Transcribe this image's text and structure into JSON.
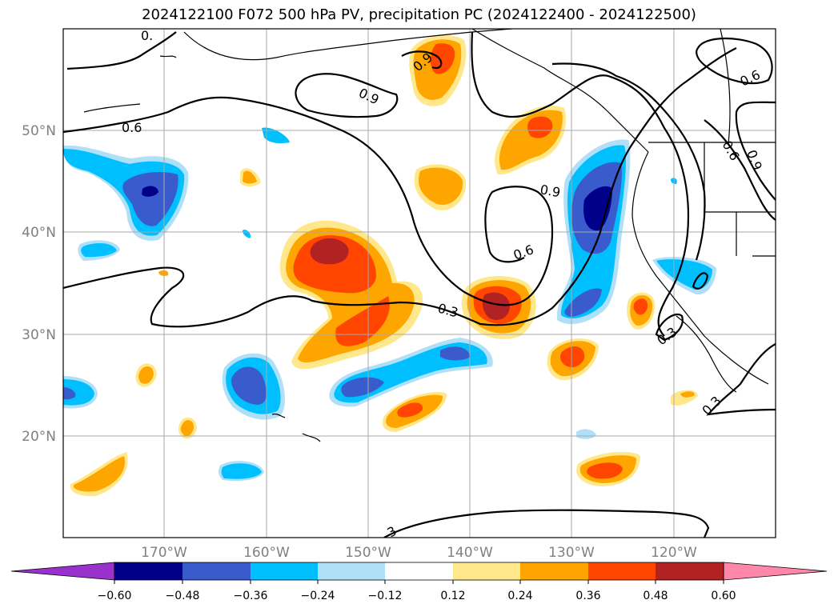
{
  "title": "2024122100 F072 500 hPa PV, precipitation PC (2024122400 - 2024122500)",
  "map": {
    "projection": "PlateCarree",
    "lon_range": [
      -180,
      -110
    ],
    "lat_range": [
      10,
      60
    ],
    "grid": true,
    "lat_ticks": [
      "20°N",
      "30°N",
      "40°N",
      "50°N"
    ],
    "lon_ticks": [
      "170°W",
      "160°W",
      "150°W",
      "140°W",
      "130°W",
      "120°W"
    ]
  },
  "pv_contours": {
    "color": "#000000",
    "levels": [
      0.3,
      0.6,
      0.9
    ],
    "labels": [
      "0.",
      "0.6",
      "0.9",
      "0.9",
      "0.9",
      "0.6",
      "0.6",
      "0.9",
      "0.6",
      "0.3",
      "0.3",
      "0.3",
      "3"
    ]
  },
  "colorbar": {
    "extend": "both",
    "ticks": [
      "−0.60",
      "−0.48",
      "−0.36",
      "−0.24",
      "−0.12",
      "0.12",
      "0.24",
      "0.36",
      "0.48",
      "0.60"
    ],
    "colors": {
      "under": "#9932cc",
      "b1": "#00008b",
      "b2": "#3a5bcc",
      "b3": "#00bfff",
      "b4": "#b0e0f8",
      "b5": "#ffffff",
      "b6": "#ffe88c",
      "b7": "#ffa500",
      "b8": "#ff4500",
      "b9": "#b22222",
      "over": "#ff88aa"
    }
  }
}
